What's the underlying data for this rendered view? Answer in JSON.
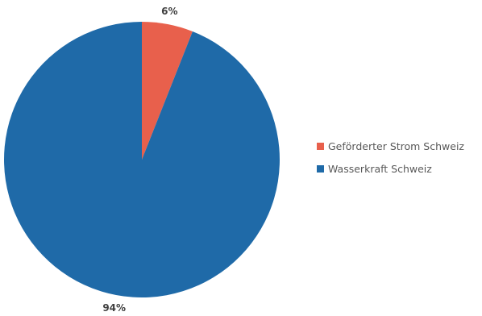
{
  "chart_data": {
    "type": "pie",
    "title": "",
    "categories": [
      "Geförderter Strom Schweiz",
      "Wasserkraft Schweiz"
    ],
    "values": [
      6,
      94
    ],
    "labels": [
      "6%",
      "94%"
    ],
    "colors": [
      "#E8604C",
      "#1F6AA8"
    ],
    "legend": {
      "position": "right",
      "entries": [
        "Geförderter Strom Schweiz",
        "Wasserkraft Schweiz"
      ]
    }
  }
}
